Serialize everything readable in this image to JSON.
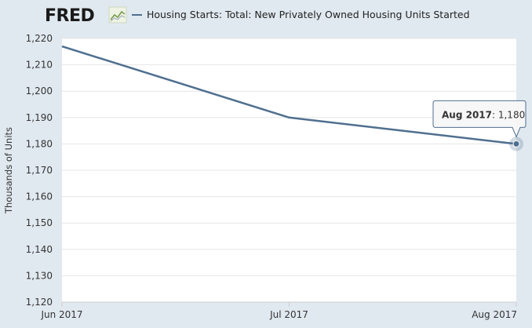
{
  "header": {
    "logo_text": "FRED",
    "logo_icon": "line-graph-icon",
    "legend_label": "Housing Starts: Total: New Privately Owned Housing Units Started"
  },
  "colors": {
    "background": "#e1e9f0",
    "plot_background": "#ffffff",
    "series_line": "#4f6f8f",
    "grid": "#e6e6e6",
    "logo_accent": "#7a9a4e"
  },
  "tooltip": {
    "date": "Aug 2017",
    "value": ": 1,180"
  },
  "chart_data": {
    "type": "line",
    "title": "",
    "xlabel": "",
    "ylabel": "Thousands of Units",
    "x": [
      "Jun 2017",
      "Jul 2017",
      "Aug 2017"
    ],
    "series": [
      {
        "name": "Housing Starts: Total: New Privately Owned Housing Units Started",
        "values": [
          1217,
          1190,
          1180
        ]
      }
    ],
    "ylim": [
      1120,
      1220
    ],
    "yticks": [
      1120,
      1130,
      1140,
      1150,
      1160,
      1170,
      1180,
      1190,
      1200,
      1210,
      1220
    ],
    "ytick_labels": [
      "1,120",
      "1,130",
      "1,140",
      "1,150",
      "1,160",
      "1,170",
      "1,180",
      "1,190",
      "1,200",
      "1,210",
      "1,220"
    ],
    "xtick_labels": [
      "Jun 2017",
      "Jul 2017",
      "Aug 2017"
    ],
    "grid": true,
    "legend": "top-left",
    "highlighted_point": "Aug 2017"
  }
}
